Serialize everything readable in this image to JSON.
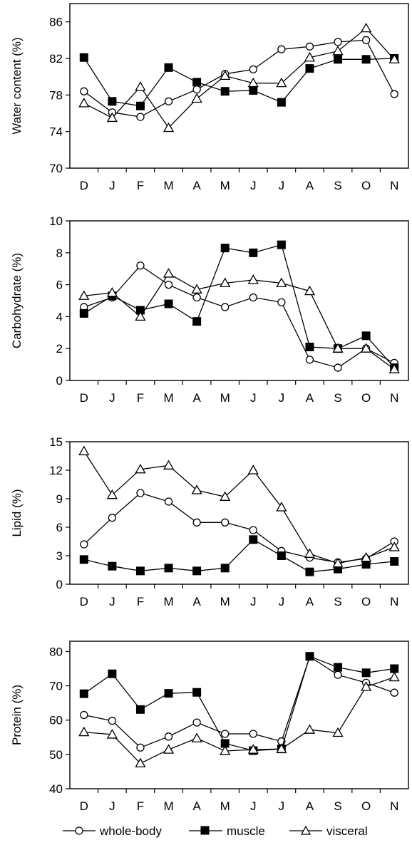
{
  "chart_data": [
    {
      "type": "line",
      "categories": [
        "D",
        "J",
        "F",
        "M",
        "A",
        "M",
        "J",
        "J",
        "A",
        "S",
        "O",
        "N"
      ],
      "ylabel": "Water content (%)",
      "ylim": [
        70,
        88
      ],
      "yticks": [
        70,
        74,
        78,
        82,
        86
      ],
      "series": [
        {
          "name": "whole-body",
          "values": [
            78.4,
            76.1,
            75.6,
            77.3,
            78.6,
            80.3,
            80.8,
            83.0,
            83.3,
            83.8,
            84.0,
            78.1
          ]
        },
        {
          "name": "muscle",
          "values": [
            82.1,
            77.3,
            76.8,
            81.0,
            79.4,
            78.4,
            78.5,
            77.2,
            80.9,
            81.9,
            81.9,
            82.0
          ]
        },
        {
          "name": "visceral",
          "values": [
            77.1,
            75.5,
            78.9,
            74.4,
            77.6,
            80.1,
            79.3,
            79.3,
            82.1,
            82.8,
            85.3,
            81.9
          ]
        }
      ]
    },
    {
      "type": "line",
      "categories": [
        "D",
        "J",
        "F",
        "M",
        "A",
        "M",
        "J",
        "J",
        "A",
        "S",
        "O",
        "N"
      ],
      "ylabel": "Carbohydrate (%)",
      "ylim": [
        0,
        10
      ],
      "yticks": [
        0,
        2,
        4,
        6,
        8,
        10
      ],
      "series": [
        {
          "name": "whole-body",
          "values": [
            4.6,
            5.2,
            7.2,
            6.0,
            5.2,
            4.6,
            5.2,
            4.9,
            1.3,
            0.8,
            2.0,
            1.1
          ]
        },
        {
          "name": "muscle",
          "values": [
            4.2,
            5.3,
            4.4,
            4.8,
            3.7,
            8.3,
            8.0,
            8.5,
            2.1,
            2.0,
            2.8,
            0.8
          ]
        },
        {
          "name": "visceral",
          "values": [
            5.3,
            5.5,
            4.0,
            6.7,
            5.7,
            6.1,
            6.3,
            6.1,
            5.6,
            2.0,
            2.0,
            0.7
          ]
        }
      ]
    },
    {
      "type": "line",
      "categories": [
        "D",
        "J",
        "F",
        "M",
        "A",
        "M",
        "J",
        "J",
        "A",
        "S",
        "O",
        "N"
      ],
      "ylabel": "Lipid (%)",
      "ylim": [
        0,
        15
      ],
      "yticks": [
        0,
        3,
        6,
        9,
        12,
        15
      ],
      "series": [
        {
          "name": "whole-body",
          "values": [
            4.2,
            7.0,
            9.6,
            8.7,
            6.5,
            6.5,
            5.7,
            3.5,
            2.8,
            2.3,
            2.7,
            4.5
          ]
        },
        {
          "name": "muscle",
          "values": [
            2.6,
            1.9,
            1.4,
            1.7,
            1.4,
            1.7,
            4.7,
            3.0,
            1.3,
            1.6,
            2.1,
            2.4
          ]
        },
        {
          "name": "visceral",
          "values": [
            14.0,
            9.4,
            12.1,
            12.5,
            9.9,
            9.2,
            12.0,
            8.1,
            3.2,
            2.2,
            2.8,
            3.9
          ]
        }
      ]
    },
    {
      "type": "line",
      "categories": [
        "D",
        "J",
        "F",
        "M",
        "A",
        "M",
        "J",
        "J",
        "A",
        "S",
        "O",
        "N"
      ],
      "ylabel": "Protein (%)",
      "ylim": [
        40,
        83
      ],
      "yticks": [
        40,
        50,
        60,
        70,
        80
      ],
      "series": [
        {
          "name": "whole-body",
          "values": [
            61.5,
            59.8,
            52.0,
            55.2,
            59.3,
            56.0,
            56.0,
            53.8,
            78.5,
            73.2,
            70.9,
            68.0
          ]
        },
        {
          "name": "muscle",
          "values": [
            67.7,
            73.5,
            63.1,
            67.8,
            68.1,
            53.2,
            51.1,
            51.6,
            78.6,
            75.4,
            73.8,
            75.0
          ]
        },
        {
          "name": "visceral",
          "values": [
            56.5,
            55.8,
            47.4,
            51.4,
            54.7,
            51.0,
            51.4,
            51.6,
            57.2,
            56.3,
            69.7,
            72.5
          ]
        }
      ]
    }
  ],
  "legend": {
    "items": [
      {
        "label": "whole-body",
        "marker": "circle-open"
      },
      {
        "label": "muscle",
        "marker": "square-filled"
      },
      {
        "label": "visceral",
        "marker": "triangle-open"
      }
    ]
  },
  "colors": {
    "line": "#000000",
    "background": "#ffffff"
  }
}
